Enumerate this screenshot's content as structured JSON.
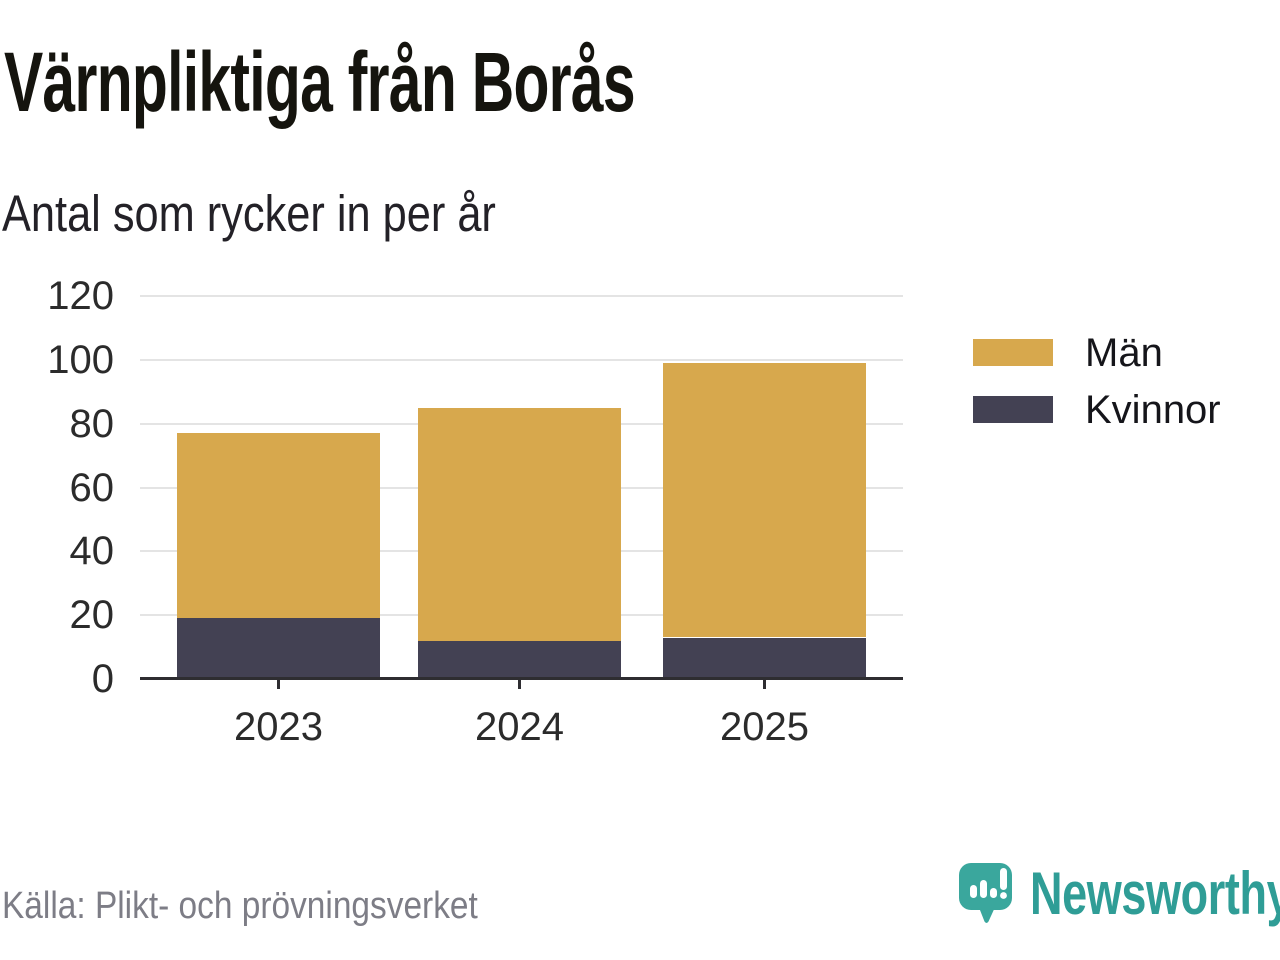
{
  "title": "Värnpliktiga från Borås",
  "subtitle": "Antal som rycker in per år",
  "source": "Källa: Plikt- och prövningsverket",
  "brand": {
    "name": "Newsworthy",
    "icon": "speech-bubble-bar-chart-icon"
  },
  "colors": {
    "men": "#d7a84d",
    "women": "#434153",
    "axis": "#2e2d31",
    "grid": "#e4e4e4",
    "tick_label": "#2b2b2b",
    "legend_label": "#15151a",
    "source_text": "#7d7d86",
    "brand_teal": "#3aa79d",
    "brand_text": "#2f9d96",
    "title_text": "#15140e",
    "subtitle_text": "#232127"
  },
  "chart_data": {
    "type": "bar",
    "stacked": true,
    "title": "Värnpliktiga från Borås",
    "subtitle": "Antal som rycker in per år",
    "categories": [
      "2023",
      "2024",
      "2025"
    ],
    "series": [
      {
        "name": "Män",
        "color": "#d7a84d",
        "values": [
          58,
          73,
          86
        ]
      },
      {
        "name": "Kvinnor",
        "color": "#434153",
        "values": [
          19,
          12,
          13
        ]
      }
    ],
    "totals": [
      77,
      85,
      99
    ],
    "xlabel": "",
    "ylabel": "",
    "ylim": [
      0,
      120
    ],
    "yticks": [
      0,
      20,
      40,
      60,
      80,
      100,
      120
    ],
    "grid": true,
    "legend_position": "right",
    "legend_items": [
      "Män",
      "Kvinnor"
    ]
  }
}
